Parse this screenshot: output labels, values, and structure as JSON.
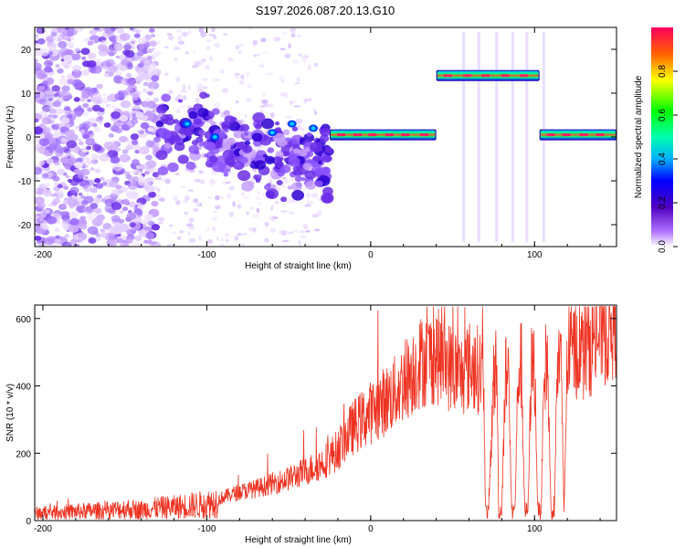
{
  "title": "S197.2026.087.20.13.G10",
  "colors": {
    "line": "#ee3322",
    "frame": "#000000"
  },
  "chart_data": [
    {
      "type": "heatmap",
      "xlabel": "Height of straight line (km)",
      "ylabel": "Frequency (Hz)",
      "xlim": [
        -205,
        150
      ],
      "ylim": [
        -25,
        25
      ],
      "xticks": [
        -200,
        -100,
        0,
        100
      ],
      "yticks": [
        -20,
        -10,
        0,
        10,
        20
      ],
      "colorbar": {
        "label": "Normalized spectral amplitude",
        "range": [
          0.0,
          1.0
        ],
        "ticks": [
          "0.0",
          "0.2",
          "0.4",
          "0.6",
          "0.8"
        ]
      },
      "features": [
        {
          "desc": "scattered noise",
          "x_range": [
            -205,
            -130
          ],
          "freq_range": [
            -25,
            25
          ]
        },
        {
          "desc": "blob cluster",
          "x_range": [
            -130,
            -25
          ],
          "freq_range": [
            -8,
            10
          ]
        },
        {
          "desc": "horizontal band",
          "x_range": [
            -25,
            40
          ],
          "freq": 0.5
        },
        {
          "desc": "horizontal band",
          "x_range": [
            40,
            103
          ],
          "freq": 14
        },
        {
          "desc": "horizontal band",
          "x_range": [
            103,
            150
          ],
          "freq": 0.5
        }
      ]
    },
    {
      "type": "line",
      "xlabel": "Height of straight line (km)",
      "ylabel": "SNR (10 * v/v)",
      "xlim": [
        -205,
        150
      ],
      "ylim": [
        0,
        640
      ],
      "xticks": [
        -200,
        -100,
        0,
        100
      ],
      "yticks": [
        0,
        200,
        400,
        600
      ],
      "series": [
        {
          "name": "SNR",
          "x": [
            -205,
            -190,
            -175,
            -160,
            -150,
            -140,
            -130,
            -120,
            -110,
            -100,
            -95,
            -90,
            -80,
            -70,
            -60,
            -50,
            -40,
            -30,
            -20,
            -15,
            -10,
            -5,
            0,
            5,
            10,
            15,
            20,
            25,
            30,
            35,
            40,
            45,
            50,
            55,
            60,
            65,
            69,
            70,
            72,
            75,
            77,
            78,
            80,
            82,
            84,
            86,
            88,
            90,
            92,
            94,
            96,
            98,
            100,
            102,
            104,
            106,
            108,
            110,
            112,
            114,
            116,
            118,
            120,
            125,
            130,
            135,
            140,
            145,
            150
          ],
          "values": [
            22,
            25,
            28,
            30,
            35,
            32,
            38,
            40,
            45,
            48,
            55,
            70,
            85,
            95,
            110,
            125,
            145,
            170,
            210,
            250,
            280,
            300,
            320,
            340,
            360,
            380,
            410,
            440,
            470,
            480,
            490,
            470,
            450,
            430,
            460,
            450,
            440,
            30,
            25,
            420,
            460,
            30,
            28,
            420,
            460,
            30,
            28,
            440,
            460,
            30,
            28,
            450,
            470,
            30,
            28,
            450,
            470,
            30,
            28,
            470,
            480,
            30,
            490,
            510,
            500,
            530,
            560,
            570,
            600
          ]
        }
      ]
    }
  ]
}
